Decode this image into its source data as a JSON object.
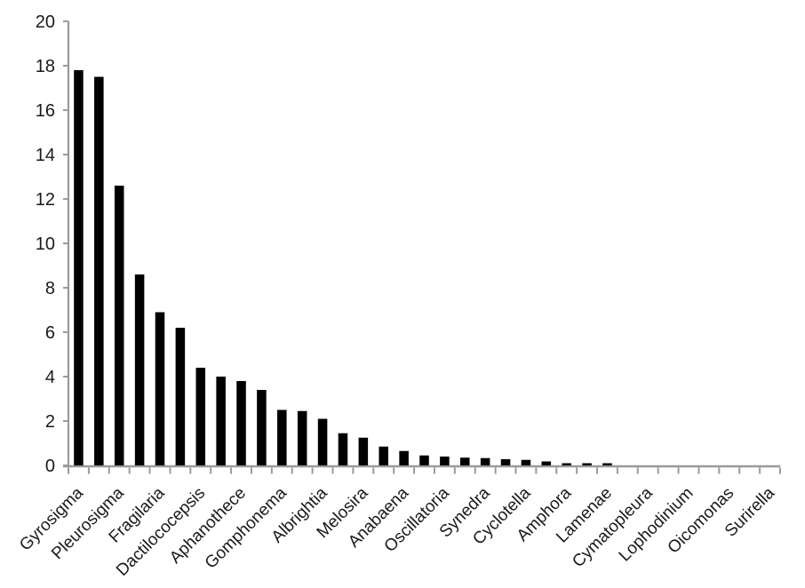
{
  "chart_data": {
    "type": "bar",
    "title": "",
    "xlabel": "",
    "ylabel": "",
    "grid": false,
    "legend": "none",
    "background": "#ffffff",
    "bar_color": "#000000",
    "axis_color": "#9a9a9a",
    "text_color": "#1a1a1a",
    "ylim": [
      0,
      20
    ],
    "ytick_step": 2,
    "ytick_labels": [
      "0",
      "2",
      "4",
      "6",
      "8",
      "10",
      "12",
      "14",
      "16",
      "18",
      "20"
    ],
    "n_categories": 35,
    "values": [
      17.8,
      17.5,
      12.6,
      8.6,
      6.9,
      6.2,
      4.4,
      4.0,
      3.8,
      3.4,
      2.5,
      2.45,
      2.1,
      1.45,
      1.25,
      0.85,
      0.65,
      0.45,
      0.4,
      0.35,
      0.33,
      0.28,
      0.25,
      0.18,
      0.1,
      0.1,
      0.1,
      0,
      0,
      0,
      0,
      0,
      0,
      0,
      0
    ],
    "x_label_interval": 2,
    "x_label_rotation_deg": 45,
    "x_labels_visible": [
      "Gyrosigma",
      "Pleurosigma",
      "Fragilaria",
      "Dactilococepsis",
      "Aphanothece",
      "Gomphonema",
      "Albrightia",
      "Melosira",
      "Anabaena",
      "Oscillatoria",
      "Synedra",
      "Cyclotella",
      "Amphora",
      "Lamenae",
      "Cymatopleura",
      "Lophodinium",
      "Oicomonas",
      "Surirella"
    ]
  }
}
